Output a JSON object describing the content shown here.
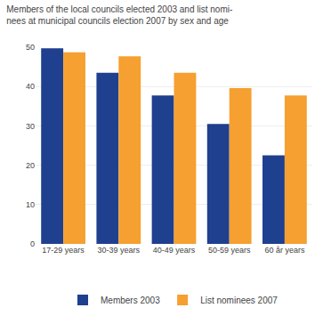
{
  "chart_data": {
    "type": "bar",
    "title": "Members of the local councils elected 2003 and list nomi-\nnees at municipal councils election 2007 by sex and age",
    "categories": [
      "17-29 years",
      "30-39 years",
      "40-49 years",
      "50-59 years",
      "60 år years"
    ],
    "series": [
      {
        "name": "Members 2003",
        "color": "#1F3F8F",
        "values": [
          49.7,
          43.5,
          37.7,
          30.5,
          22.5
        ]
      },
      {
        "name": "List nominees 2007",
        "color": "#F5A030",
        "values": [
          48.7,
          47.7,
          43.5,
          39.6,
          37.7
        ]
      }
    ],
    "ylim": [
      0,
      50
    ],
    "yticks": [
      0,
      10,
      20,
      30,
      40,
      50
    ],
    "grid": true,
    "legend": "bottom"
  }
}
